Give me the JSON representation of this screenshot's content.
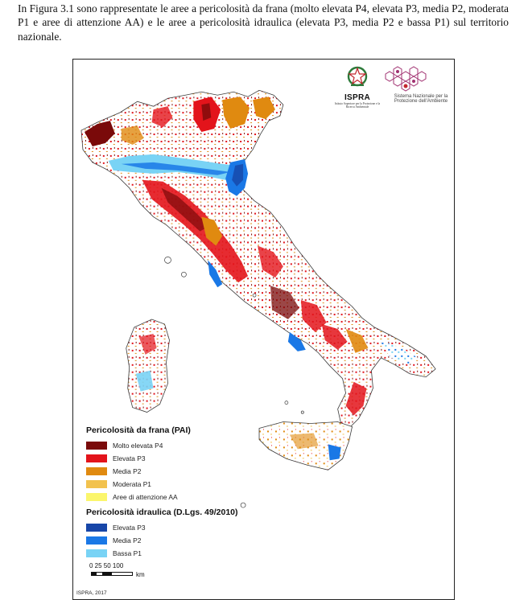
{
  "intro_text": "In Figura 3.1 sono rappresentate le aree a pericolosità da frana (molto elevata P4, elevata P3, media P2, moderata P1 e aree di attenzione AA) e le aree a pericolosità idraulica (elevata P3, media P2 e bassa P1) sul territorio nazionale.",
  "logos": {
    "ispra_name": "ISPRA",
    "ispra_sub": "Istituto Superiore per la Protezione e la Ricerca Ambientale",
    "snpa_text": "Sistema Nazionale per la Protezione dell'Ambiente"
  },
  "legend": {
    "landslide_title": "Pericolosità da frana (PAI)",
    "landslide_items": [
      {
        "label": "Molto elevata P4",
        "color": "#7a0a0a"
      },
      {
        "label": "Elevata P3",
        "color": "#e3141b"
      },
      {
        "label": "Media P2",
        "color": "#e08a10"
      },
      {
        "label": "Moderata P1",
        "color": "#f2c24e"
      },
      {
        "label": "Aree di attenzione AA",
        "color": "#fbf66c"
      }
    ],
    "flood_title": "Pericolosità idraulica (D.Lgs. 49/2010)",
    "flood_items": [
      {
        "label": "Elevata P3",
        "color": "#1746a8"
      },
      {
        "label": "Media P2",
        "color": "#1a78e6"
      },
      {
        "label": "Bassa P1",
        "color": "#79d3f5"
      }
    ]
  },
  "scale_bar": {
    "ticks": "0 25 50     100",
    "unit": "km"
  },
  "credit": "ISPRA, 2017",
  "colors": {
    "outline": "#3a3a3a",
    "background": "#ffffff"
  }
}
